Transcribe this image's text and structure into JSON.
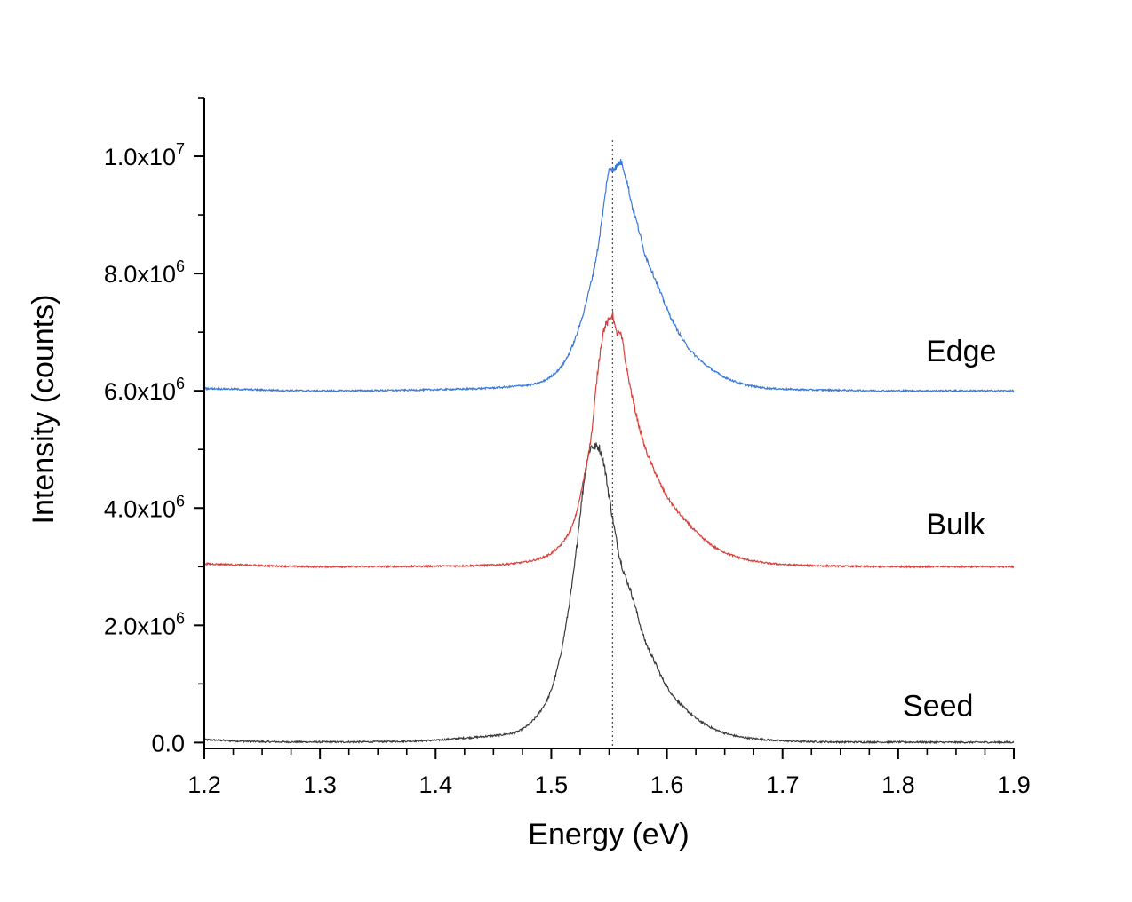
{
  "chart_data": {
    "type": "line",
    "title": "",
    "xlabel": "Energy (eV)",
    "ylabel": "Intensity (counts)",
    "xlim": [
      1.2,
      1.9
    ],
    "ylim": [
      -100000,
      11000000
    ],
    "x_ticks": [
      1.2,
      1.3,
      1.4,
      1.5,
      1.6,
      1.7,
      1.8,
      1.9
    ],
    "x_tick_labels": [
      "1.2",
      "1.3",
      "1.4",
      "1.5",
      "1.6",
      "1.7",
      "1.8",
      "1.9"
    ],
    "y_ticks": [
      0,
      2000000,
      4000000,
      6000000,
      8000000,
      10000000
    ],
    "y_tick_labels": [
      {
        "mantissa": "0.0",
        "exponent": ""
      },
      {
        "mantissa": "2.0x10",
        "exponent": "6"
      },
      {
        "mantissa": "4.0x10",
        "exponent": "6"
      },
      {
        "mantissa": "6.0x10",
        "exponent": "6"
      },
      {
        "mantissa": "8.0x10",
        "exponent": "6"
      },
      {
        "mantissa": "1.0x10",
        "exponent": "7"
      }
    ],
    "reference_line": {
      "x": 1.553,
      "style": "dotted",
      "color": "#555555"
    },
    "series": [
      {
        "name": "Seed",
        "color": "#3a3a3a",
        "x": [
          1.2,
          1.25,
          1.3,
          1.35,
          1.4,
          1.42,
          1.44,
          1.46,
          1.47,
          1.48,
          1.49,
          1.5,
          1.51,
          1.52,
          1.525,
          1.53,
          1.535,
          1.54,
          1.545,
          1.55,
          1.555,
          1.56,
          1.57,
          1.58,
          1.59,
          1.6,
          1.62,
          1.64,
          1.66,
          1.68,
          1.7,
          1.75,
          1.8,
          1.85,
          1.9
        ],
        "y": [
          50000,
          15000,
          10000,
          15000,
          40000,
          70000,
          100000,
          140000,
          180000,
          300000,
          520000,
          900000,
          1700000,
          3000000,
          3900000,
          4700000,
          5050000,
          5050000,
          4800000,
          4200000,
          3600000,
          3100000,
          2500000,
          1800000,
          1350000,
          950000,
          500000,
          240000,
          110000,
          60000,
          30000,
          10000,
          8000,
          5000,
          5000
        ]
      },
      {
        "name": "Bulk",
        "color": "#d9403a",
        "x": [
          1.2,
          1.3,
          1.4,
          1.45,
          1.47,
          1.48,
          1.49,
          1.5,
          1.51,
          1.52,
          1.53,
          1.535,
          1.54,
          1.545,
          1.55,
          1.553,
          1.556,
          1.56,
          1.565,
          1.57,
          1.58,
          1.59,
          1.6,
          1.62,
          1.64,
          1.66,
          1.68,
          1.7,
          1.75,
          1.8,
          1.85,
          1.9
        ],
        "y": [
          3050000,
          3000000,
          3010000,
          3030000,
          3060000,
          3090000,
          3140000,
          3230000,
          3420000,
          3800000,
          4700000,
          5300000,
          6300000,
          7000000,
          7200000,
          7300000,
          7000000,
          6950000,
          6400000,
          5900000,
          5100000,
          4600000,
          4200000,
          3700000,
          3350000,
          3170000,
          3080000,
          3040000,
          3010000,
          3000000,
          3000000,
          3000000
        ]
      },
      {
        "name": "Edge",
        "color": "#3a78dc",
        "x": [
          1.2,
          1.3,
          1.4,
          1.45,
          1.47,
          1.49,
          1.5,
          1.51,
          1.52,
          1.53,
          1.54,
          1.545,
          1.55,
          1.555,
          1.56,
          1.565,
          1.57,
          1.575,
          1.58,
          1.59,
          1.6,
          1.61,
          1.62,
          1.64,
          1.66,
          1.68,
          1.7,
          1.75,
          1.8,
          1.85,
          1.9
        ],
        "y": [
          6040000,
          6000000,
          6020000,
          6050000,
          6080000,
          6140000,
          6250000,
          6450000,
          6850000,
          7500000,
          8400000,
          9100000,
          9750000,
          9800000,
          9900000,
          9600000,
          9150000,
          8800000,
          8400000,
          7900000,
          7400000,
          7000000,
          6700000,
          6350000,
          6150000,
          6060000,
          6030000,
          6010000,
          6000000,
          6000000,
          6000000
        ]
      }
    ],
    "series_labels": [
      {
        "text": "Edge",
        "x": 1.885,
        "y": 6500000
      },
      {
        "text": "Bulk",
        "x": 1.875,
        "y": 3550000
      },
      {
        "text": "Seed",
        "x": 1.865,
        "y": 450000
      }
    ]
  }
}
